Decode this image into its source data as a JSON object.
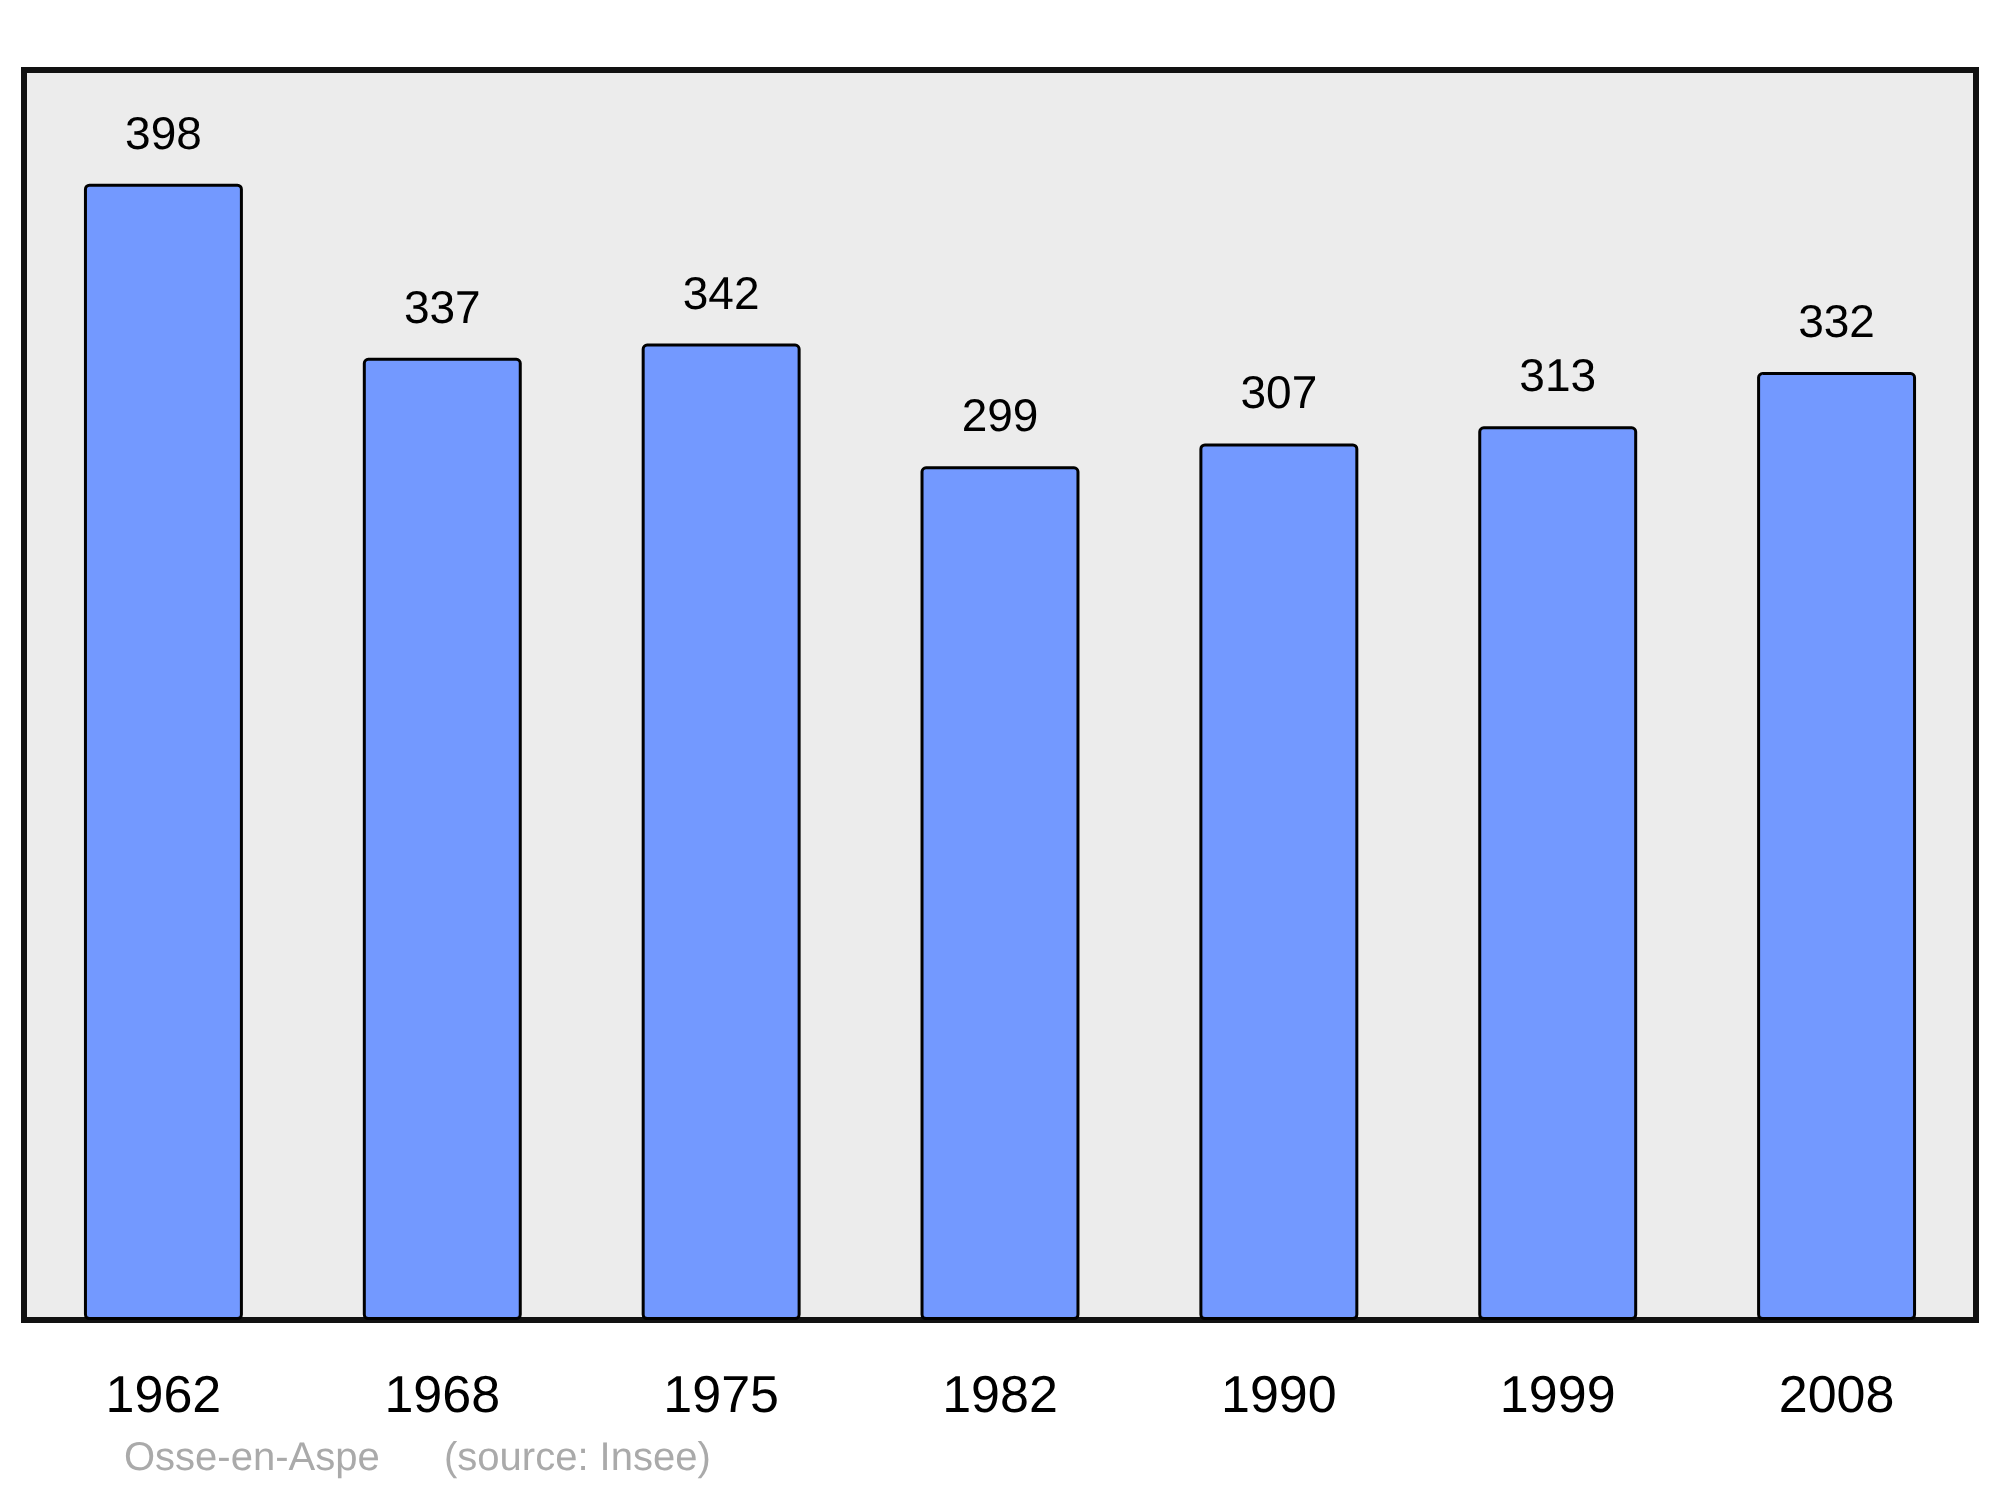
{
  "chart_data": {
    "type": "bar",
    "categories": [
      "1962",
      "1968",
      "1975",
      "1982",
      "1990",
      "1999",
      "2008"
    ],
    "values": [
      398,
      337,
      342,
      299,
      307,
      313,
      332
    ],
    "color": "#7399ff",
    "data_labels": true,
    "grid": false,
    "tick_labels": "x",
    "annotations": [
      "Osse-en-Aspe",
      "(source: Insee)"
    ]
  }
}
